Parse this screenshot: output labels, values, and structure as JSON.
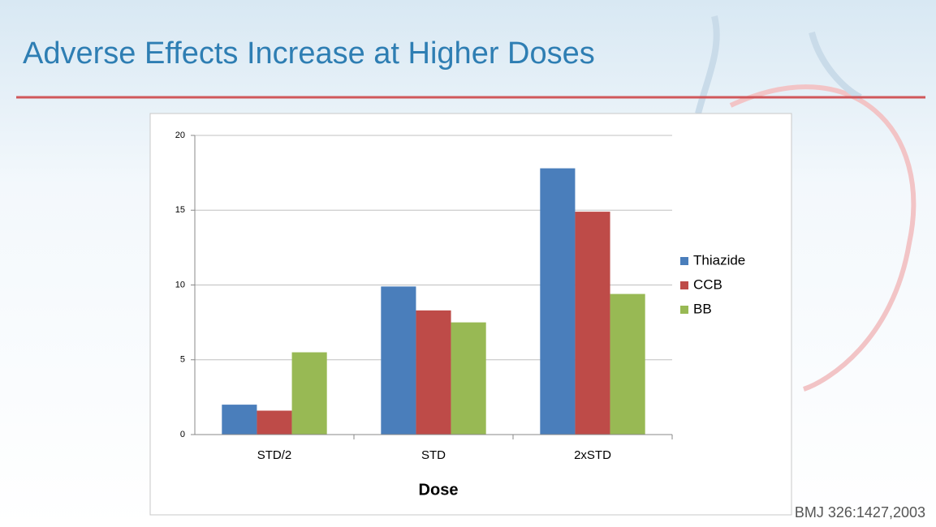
{
  "chart_data": {
    "type": "bar",
    "title": "Adverse Effects Increase at Higher Doses",
    "x_label": "Dose",
    "source": "BMJ 326:1427,2003",
    "categories": [
      "STD/2",
      "STD",
      "2xSTD"
    ],
    "series": [
      {
        "name": "Thiazide",
        "color": "#4a7ebb",
        "values": [
          2.0,
          9.9,
          17.8
        ]
      },
      {
        "name": "CCB",
        "color": "#be4b48",
        "values": [
          1.6,
          8.3,
          14.9
        ]
      },
      {
        "name": "BB",
        "color": "#98b954",
        "values": [
          5.5,
          7.5,
          9.4
        ]
      }
    ],
    "ylim": [
      0,
      20
    ],
    "yticks": [
      0,
      5,
      10,
      15,
      20
    ],
    "grid": true,
    "legend": "right"
  }
}
